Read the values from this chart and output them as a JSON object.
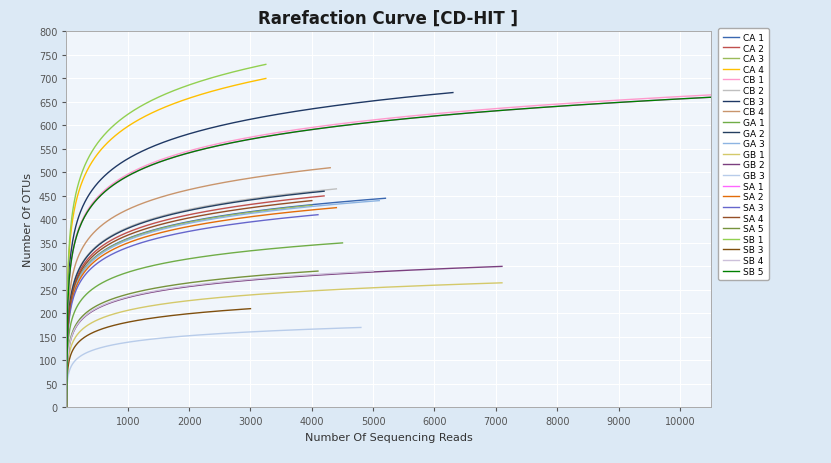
{
  "title": "Rarefaction Curve [CD-HIT ]",
  "xlabel": "Number Of Sequencing Reads",
  "ylabel": "Number Of OTUs",
  "xlim": [
    0,
    10500
  ],
  "ylim": [
    0,
    800
  ],
  "xticks": [
    1000,
    2000,
    3000,
    4000,
    5000,
    6000,
    7000,
    8000,
    9000,
    10000
  ],
  "yticks": [
    0,
    50,
    100,
    150,
    200,
    250,
    300,
    350,
    400,
    450,
    500,
    550,
    600,
    650,
    700,
    750,
    800
  ],
  "fig_bg_color": "#dce9f5",
  "plot_bg_color": "#f0f5fb",
  "grid_color": "#ffffff",
  "curves": [
    {
      "label": "CA 1",
      "color": "#3a67b0",
      "max_x": 5200,
      "max_y": 445
    },
    {
      "label": "CA 2",
      "color": "#c0504d",
      "max_x": 4200,
      "max_y": 450
    },
    {
      "label": "CA 3",
      "color": "#9bbb59",
      "max_x": 4000,
      "max_y": 430
    },
    {
      "label": "CA 4",
      "color": "#ffc000",
      "max_x": 3250,
      "max_y": 700
    },
    {
      "label": "CB 1",
      "color": "#ff99cc",
      "max_x": 10500,
      "max_y": 665
    },
    {
      "label": "CB 2",
      "color": "#bfbfbf",
      "max_x": 4400,
      "max_y": 465
    },
    {
      "label": "CB 3",
      "color": "#1f3864",
      "max_x": 6300,
      "max_y": 670
    },
    {
      "label": "CB 4",
      "color": "#c9956c",
      "max_x": 4300,
      "max_y": 510
    },
    {
      "label": "GA 1",
      "color": "#70ad47",
      "max_x": 4500,
      "max_y": 350
    },
    {
      "label": "GA 2",
      "color": "#243f60",
      "max_x": 4200,
      "max_y": 460
    },
    {
      "label": "GA 3",
      "color": "#8db4e2",
      "max_x": 5100,
      "max_y": 440
    },
    {
      "label": "GB 1",
      "color": "#d4c96a",
      "max_x": 7100,
      "max_y": 265
    },
    {
      "label": "GB 2",
      "color": "#7b3f7f",
      "max_x": 7100,
      "max_y": 300
    },
    {
      "label": "GB 3",
      "color": "#b8ccea",
      "max_x": 4800,
      "max_y": 170
    },
    {
      "label": "SA 1",
      "color": "#ff66ff",
      "max_x": 10500,
      "max_y": 660
    },
    {
      "label": "SA 2",
      "color": "#e36c09",
      "max_x": 4400,
      "max_y": 425
    },
    {
      "label": "SA 3",
      "color": "#6666cc",
      "max_x": 4100,
      "max_y": 410
    },
    {
      "label": "SA 4",
      "color": "#954f27",
      "max_x": 4000,
      "max_y": 440
    },
    {
      "label": "SA 5",
      "color": "#76933c",
      "max_x": 4100,
      "max_y": 290
    },
    {
      "label": "SB 1",
      "color": "#92d050",
      "max_x": 3250,
      "max_y": 730
    },
    {
      "label": "SB 3",
      "color": "#7f4f0e",
      "max_x": 3000,
      "max_y": 210
    },
    {
      "label": "SB 4",
      "color": "#ccc0da",
      "max_x": 5000,
      "max_y": 290
    },
    {
      "label": "SB 5",
      "color": "#008000",
      "max_x": 10500,
      "max_y": 660
    }
  ]
}
